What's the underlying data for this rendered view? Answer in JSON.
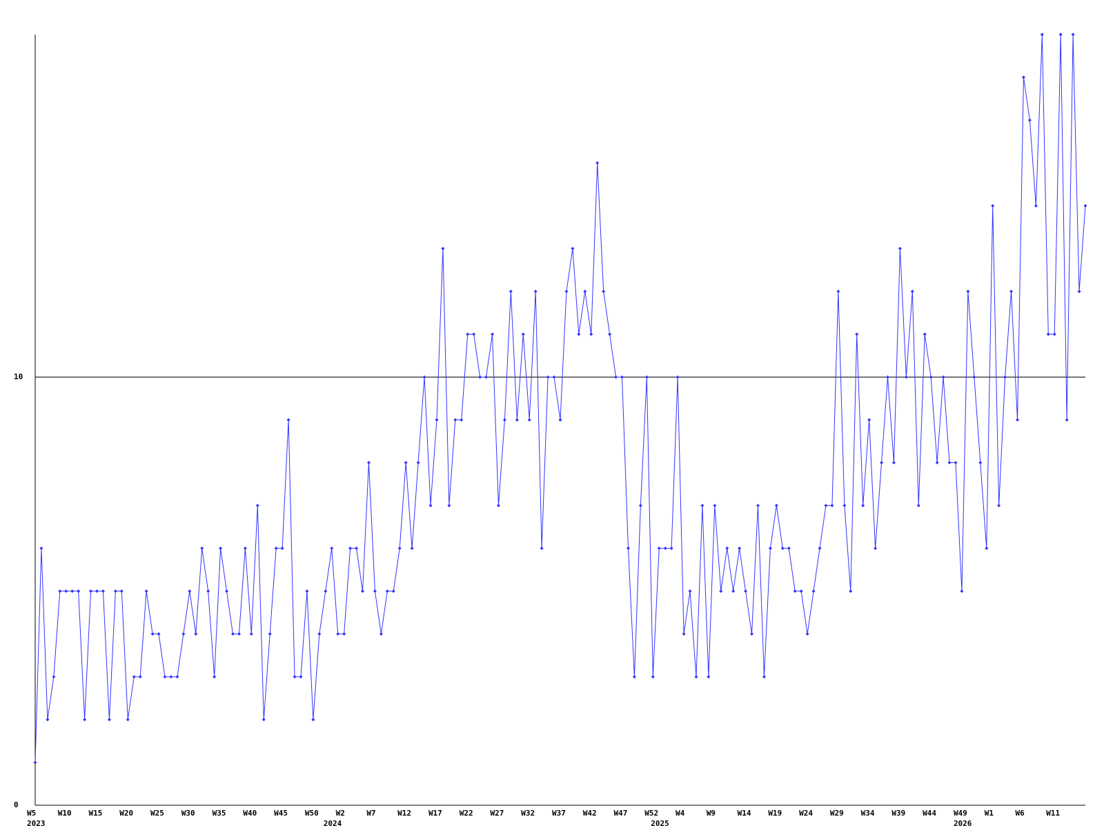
{
  "chart_data": {
    "type": "line",
    "categories": [
      "W5",
      null,
      null,
      null,
      null,
      "W10",
      null,
      null,
      null,
      null,
      "W15",
      null,
      null,
      null,
      null,
      "W20",
      null,
      null,
      null,
      null,
      "W25",
      null,
      null,
      null,
      null,
      "W30",
      null,
      null,
      null,
      null,
      "W35",
      null,
      null,
      null,
      null,
      "W40",
      null,
      null,
      null,
      null,
      "W45",
      null,
      null,
      null,
      null,
      "W50",
      null,
      null,
      null,
      null,
      "W2",
      null,
      null,
      null,
      null,
      "W7",
      null,
      null,
      null,
      null,
      "W12",
      null,
      null,
      null,
      null,
      "W17",
      null,
      null,
      null,
      null,
      "W22",
      null,
      null,
      null,
      null,
      "W27",
      null,
      null,
      null,
      null,
      "W32",
      null,
      null,
      null,
      null,
      "W37",
      null,
      null,
      null,
      null,
      "W42",
      null,
      null,
      null,
      null,
      "W47",
      null,
      null,
      null,
      null,
      "W52",
      null,
      null,
      null,
      null,
      "W4",
      null,
      null,
      null,
      null,
      "W9",
      null,
      null,
      null,
      null,
      "W14",
      null,
      null,
      null,
      null,
      "W19",
      null,
      null,
      null,
      null,
      "W24",
      null,
      null,
      null,
      null,
      "W29",
      null,
      null,
      null,
      null,
      "W34",
      null,
      null,
      null,
      null,
      "W39",
      null,
      null,
      null,
      null,
      "W44",
      null,
      null,
      null,
      null,
      "W49",
      null,
      null,
      null,
      null,
      "W1",
      null,
      null,
      null,
      null,
      "W6",
      null,
      null,
      null,
      null,
      "W11",
      null,
      null,
      null,
      null,
      null
    ],
    "year_categories": [
      "2023",
      null,
      null,
      null,
      null,
      null,
      null,
      null,
      null,
      null,
      null,
      null,
      null,
      null,
      null,
      null,
      null,
      null,
      null,
      null,
      null,
      null,
      null,
      null,
      null,
      null,
      null,
      null,
      null,
      null,
      null,
      null,
      null,
      null,
      null,
      null,
      null,
      null,
      null,
      null,
      null,
      null,
      null,
      null,
      null,
      null,
      null,
      null,
      "2024",
      null,
      null,
      null,
      null,
      null,
      null,
      null,
      null,
      null,
      null,
      null,
      null,
      null,
      null,
      null,
      null,
      null,
      null,
      null,
      null,
      null,
      null,
      null,
      null,
      null,
      null,
      null,
      null,
      null,
      null,
      null,
      null,
      null,
      null,
      null,
      null,
      null,
      null,
      null,
      null,
      null,
      null,
      null,
      null,
      null,
      null,
      null,
      null,
      null,
      null,
      null,
      null,
      "2025",
      null,
      null,
      null,
      null,
      null,
      null,
      null,
      null,
      null,
      null,
      null,
      null,
      null,
      null,
      null,
      null,
      null,
      null,
      null,
      null,
      null,
      null,
      null,
      null,
      null,
      null,
      null,
      null,
      null,
      null,
      null,
      null,
      null,
      null,
      null,
      null,
      null,
      null,
      null,
      null,
      null,
      null,
      null,
      null,
      null,
      null,
      null,
      null,
      "2026",
      null,
      null,
      null,
      null,
      null,
      null,
      null,
      null,
      null,
      null,
      null,
      null,
      null,
      null,
      null,
      null
    ],
    "values": [
      1,
      6,
      2,
      3,
      5,
      5,
      5,
      5,
      2,
      5,
      5,
      5,
      2,
      5,
      5,
      2,
      3,
      3,
      5,
      4,
      4,
      3,
      3,
      3,
      4,
      5,
      4,
      6,
      5,
      3,
      6,
      5,
      4,
      4,
      6,
      4,
      7,
      2,
      4,
      6,
      6,
      9,
      3,
      3,
      5,
      2,
      4,
      5,
      6,
      4,
      4,
      6,
      6,
      5,
      8,
      5,
      4,
      5,
      5,
      6,
      8,
      6,
      8,
      10,
      7,
      9,
      13,
      7,
      9,
      9,
      11,
      11,
      10,
      10,
      11,
      7,
      9,
      12,
      9,
      11,
      9,
      12,
      6,
      10,
      10,
      9,
      12,
      13,
      11,
      12,
      11,
      15,
      12,
      11,
      10,
      10,
      6,
      3,
      7,
      10,
      3,
      6,
      6,
      6,
      10,
      4,
      5,
      3,
      7,
      3,
      7,
      5,
      6,
      5,
      6,
      5,
      4,
      7,
      3,
      6,
      7,
      6,
      6,
      5,
      5,
      4,
      5,
      6,
      7,
      7,
      12,
      7,
      5,
      11,
      7,
      9,
      6,
      8,
      10,
      8,
      13,
      10,
      12,
      7,
      11,
      10,
      8,
      10,
      8,
      8,
      5,
      12,
      10,
      8,
      6,
      14,
      7,
      10,
      12,
      9,
      17,
      16,
      14,
      18,
      11,
      11,
      18,
      9,
      18,
      12,
      14
    ],
    "color": "#3333ff",
    "ylim": [
      0,
      18
    ],
    "yticks": [
      0,
      10
    ],
    "grid": true
  }
}
